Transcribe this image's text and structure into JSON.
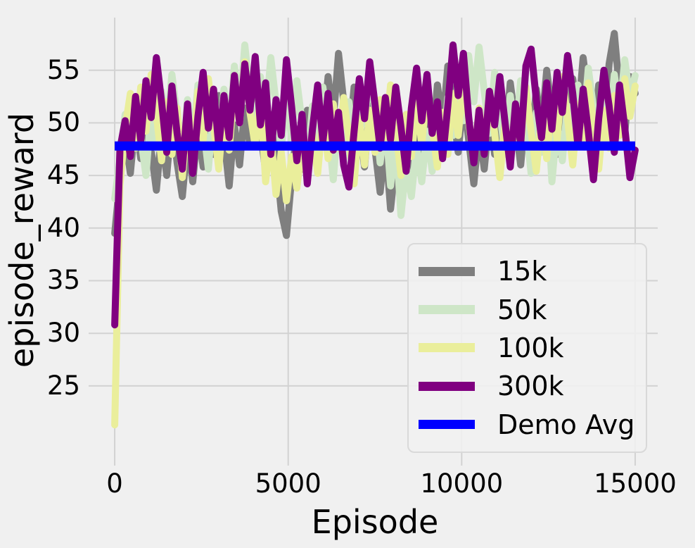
{
  "figure": {
    "background": "#f0f0f0",
    "grid_color": "#d2d2d2",
    "text_color": "#000000"
  },
  "chart_data": {
    "type": "line",
    "title": "",
    "xlabel": "Episode",
    "ylabel": "episode_reward",
    "grid": true,
    "legend_position": "lower right",
    "xlim": [
      -650,
      15650
    ],
    "ylim": [
      18.5,
      60.0
    ],
    "xticks": [
      0,
      5000,
      10000,
      15000
    ],
    "yticks": [
      25,
      30,
      35,
      40,
      45,
      50,
      55
    ],
    "x": [
      0,
      150,
      300,
      450,
      600,
      750,
      900,
      1050,
      1200,
      1350,
      1500,
      1650,
      1800,
      1950,
      2100,
      2250,
      2400,
      2550,
      2700,
      2850,
      3000,
      3150,
      3300,
      3450,
      3600,
      3750,
      3900,
      4050,
      4200,
      4350,
      4500,
      4650,
      4800,
      4950,
      5100,
      5250,
      5400,
      5550,
      5700,
      5850,
      6000,
      6150,
      6300,
      6450,
      6600,
      6750,
      6900,
      7050,
      7200,
      7350,
      7500,
      7650,
      7800,
      7950,
      8100,
      8250,
      8400,
      8550,
      8700,
      8850,
      9000,
      9150,
      9300,
      9450,
      9600,
      9750,
      9900,
      10050,
      10200,
      10350,
      10500,
      10650,
      10800,
      10950,
      11100,
      11250,
      11400,
      11550,
      11700,
      11850,
      12000,
      12150,
      12300,
      12450,
      12600,
      12750,
      12900,
      13050,
      13200,
      13350,
      13500,
      13650,
      13800,
      13950,
      14100,
      14250,
      14400,
      14550,
      14700,
      14850,
      15000
    ],
    "series": [
      {
        "name": "15k",
        "color": "#7f7f7f",
        "values": [
          39.5,
          44.6,
          48.8,
          45.2,
          50.4,
          46.6,
          51.8,
          47.4,
          43.6,
          49.0,
          45.0,
          50.6,
          46.2,
          43.0,
          48.4,
          44.4,
          49.6,
          45.8,
          51.0,
          47.0,
          52.6,
          48.6,
          44.0,
          49.8,
          46.0,
          51.4,
          47.8,
          53.0,
          49.2,
          45.4,
          50.8,
          46.8,
          41.6,
          39.3,
          44.8,
          49.4,
          45.6,
          51.2,
          47.2,
          52.8,
          48.8,
          54.4,
          50.2,
          56.6,
          52.0,
          48.0,
          53.4,
          49.6,
          45.8,
          51.6,
          47.6,
          43.4,
          48.2,
          41.8,
          46.4,
          43.2,
          48.6,
          44.8,
          50.0,
          46.2,
          51.8,
          48.0,
          53.6,
          49.8,
          55.4,
          51.2,
          47.2,
          52.4,
          48.4,
          44.2,
          49.4,
          45.6,
          50.8,
          47.0,
          52.2,
          48.2,
          53.8,
          50.0,
          46.0,
          51.4,
          47.6,
          53.2,
          49.4,
          55.0,
          51.0,
          47.0,
          52.6,
          48.8,
          54.2,
          50.4,
          56.2,
          52.2,
          48.2,
          53.6,
          49.8,
          55.6,
          58.5,
          53.0,
          49.0,
          54.4,
          52.8
        ]
      },
      {
        "name": "50k",
        "color": "#cee6c7",
        "values": [
          42.8,
          46.5,
          50.8,
          47.2,
          52.4,
          48.6,
          45.0,
          51.2,
          47.6,
          53.0,
          49.4,
          54.6,
          50.6,
          46.8,
          52.2,
          48.2,
          53.6,
          49.8,
          45.6,
          51.4,
          47.8,
          53.2,
          49.2,
          55.4,
          51.0,
          57.4,
          52.6,
          48.8,
          54.4,
          50.4,
          56.2,
          51.8,
          47.4,
          52.8,
          48.4,
          54.0,
          50.0,
          45.8,
          51.6,
          47.6,
          53.4,
          49.6,
          44.6,
          50.8,
          46.6,
          52.0,
          48.0,
          53.8,
          49.9,
          55.0,
          51.2,
          46.2,
          50.4,
          44.0,
          48.6,
          41.2,
          46.0,
          43.0,
          47.8,
          44.4,
          49.2,
          45.4,
          50.6,
          46.8,
          52.4,
          48.8,
          54.2,
          50.2,
          56.4,
          52.0,
          57.2,
          53.0,
          49.0,
          54.8,
          51.0,
          47.0,
          52.6,
          48.6,
          54.0,
          50.0,
          45.2,
          51.0,
          47.2,
          52.8,
          44.4,
          49.8,
          46.4,
          51.6,
          48.0,
          53.6,
          49.4,
          55.2,
          51.4,
          47.6,
          53.0,
          49.2,
          54.6,
          50.8,
          56.0,
          52.4,
          54.5
        ]
      },
      {
        "name": "100k",
        "color": "#eaee9b",
        "values": [
          21.3,
          44.0,
          49.5,
          52.8,
          47.6,
          53.4,
          49.2,
          54.6,
          50.8,
          46.4,
          52.0,
          47.0,
          51.4,
          44.8,
          50.2,
          46.2,
          53.0,
          48.4,
          54.2,
          49.8,
          45.6,
          51.6,
          47.4,
          53.8,
          50.0,
          55.8,
          51.0,
          47.8,
          52.6,
          44.4,
          48.8,
          43.2,
          47.2,
          42.6,
          46.8,
          43.8,
          48.0,
          44.6,
          49.0,
          45.2,
          50.6,
          46.6,
          51.8,
          47.6,
          52.4,
          48.6,
          44.2,
          50.4,
          46.0,
          51.2,
          47.2,
          52.2,
          48.2,
          53.6,
          49.4,
          45.0,
          50.8,
          46.8,
          52.0,
          48.0,
          53.2,
          49.6,
          45.8,
          51.0,
          47.0,
          52.8,
          48.8,
          54.0,
          50.2,
          46.4,
          51.4,
          47.4,
          53.0,
          49.0,
          44.8,
          50.0,
          46.2,
          51.6,
          47.8,
          53.4,
          49.2,
          45.4,
          50.6,
          46.6,
          52.2,
          48.4,
          54.4,
          50.4,
          46.0,
          51.8,
          48.2,
          53.8,
          49.8,
          45.6,
          51.2,
          47.6,
          52.6,
          48.8,
          54.2,
          50.6,
          53.5
        ]
      },
      {
        "name": "300k",
        "color": "#800080",
        "values": [
          30.8,
          47.5,
          50.2,
          46.8,
          52.5,
          48.3,
          54.0,
          50.5,
          56.2,
          52.0,
          47.2,
          53.5,
          49.0,
          45.6,
          51.8,
          45.2,
          50.6,
          54.8,
          49.5,
          53.2,
          47.8,
          52.6,
          48.6,
          54.5,
          50.0,
          55.6,
          51.2,
          56.3,
          49.8,
          53.8,
          47.0,
          52.2,
          48.8,
          56.0,
          51.5,
          46.4,
          50.8,
          44.2,
          49.4,
          53.6,
          48.2,
          52.8,
          47.4,
          51.0,
          46.0,
          43.9,
          49.2,
          54.2,
          50.4,
          55.8,
          51.8,
          47.6,
          52.4,
          48.4,
          53.4,
          49.6,
          45.4,
          51.4,
          55.2,
          50.2,
          54.6,
          49.0,
          52.0,
          46.6,
          51.6,
          57.4,
          52.6,
          56.6,
          50.6,
          46.2,
          51.2,
          47.0,
          53.0,
          49.8,
          54.4,
          50.0,
          45.8,
          51.8,
          48.0,
          55.4,
          57.0,
          52.2,
          48.6,
          53.8,
          49.4,
          54.8,
          51.0,
          56.4,
          52.8,
          47.8,
          53.2,
          49.2,
          44.6,
          50.4,
          55.0,
          51.6,
          47.2,
          53.6,
          49.6,
          44.8,
          47.4
        ]
      },
      {
        "name": "Demo Avg",
        "color": "#0000ff",
        "hline": true,
        "value": 47.8,
        "x_range": [
          0,
          15000
        ]
      }
    ]
  }
}
